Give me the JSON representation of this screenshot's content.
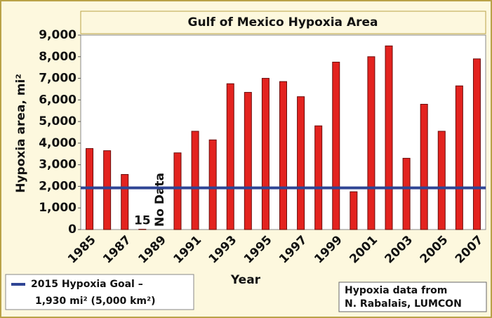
{
  "chart_data": {
    "type": "bar",
    "title": "Gulf of Mexico Hypoxia Area",
    "x_label": "Year",
    "y_label": "Hypoxia area, mi²",
    "categories": [
      "1985",
      null,
      "1987",
      null,
      "1989",
      null,
      "1991",
      null,
      "1993",
      null,
      "1995",
      null,
      "1997",
      null,
      "1999",
      null,
      "2001",
      null,
      "2003",
      null,
      "2005",
      null,
      "2007"
    ],
    "values": [
      3750,
      3650,
      2550,
      15,
      null,
      3550,
      4550,
      4150,
      6750,
      6350,
      7000,
      6850,
      6150,
      4800,
      7750,
      1750,
      8000,
      8500,
      3300,
      5800,
      4550,
      6650,
      7900
    ],
    "value_labels": [
      null,
      null,
      null,
      "15",
      "No Data",
      null,
      null,
      null,
      null,
      null,
      null,
      null,
      null,
      null,
      null,
      null,
      null,
      null,
      null,
      null,
      null,
      null,
      null
    ],
    "color": "#e3231f",
    "ylim": [
      0,
      9000
    ],
    "yticks": [
      0,
      {
        "value": 1000,
        "label": "1,000"
      },
      {
        "value": 2000,
        "label": "2,000"
      },
      {
        "value": 3000,
        "label": "3,000"
      },
      {
        "value": 4000,
        "label": "4,000"
      },
      {
        "value": 5000,
        "label": "5,000"
      },
      {
        "value": 6000,
        "label": "6,000"
      },
      {
        "value": 7000,
        "label": "7,000"
      },
      {
        "value": 8000,
        "label": "8,000"
      },
      {
        "value": 9000,
        "label": "9,000"
      }
    ],
    "grid": false,
    "reference_line": {
      "value": 1930,
      "color": "#2f4594",
      "legend": [
        "2015 Hypoxia Goal –",
        "1,930 mi² (5,000 km²)"
      ]
    },
    "source_note": [
      "Hypoxia data from",
      "N. Rabalais, LUMCON"
    ]
  }
}
